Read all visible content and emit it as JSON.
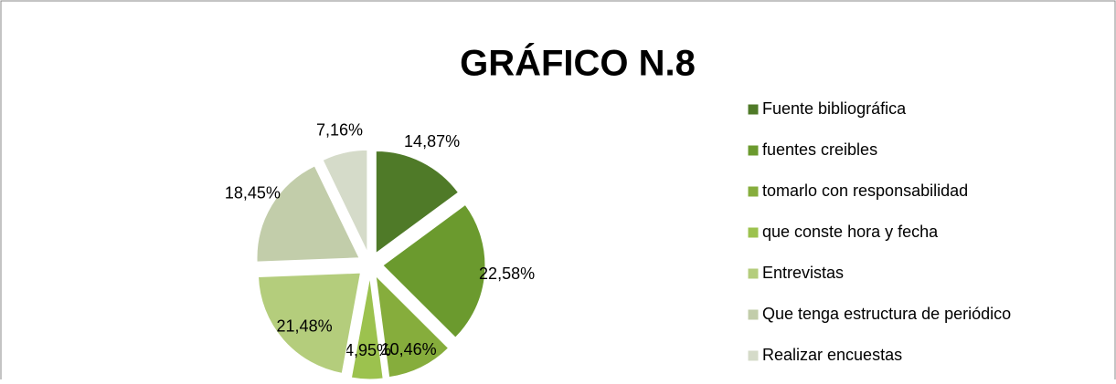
{
  "chart_data": {
    "type": "pie",
    "title": "GRÁFICO N.8",
    "categories": [
      "Fuente bibliográfica",
      "fuentes creibles",
      "tomarlo con responsabilidad",
      "que conste hora y fecha",
      "Entrevistas",
      "Que tenga estructura de periódico",
      "Realizar encuestas"
    ],
    "values": [
      14.87,
      22.58,
      10.46,
      4.95,
      21.48,
      18.45,
      7.16
    ],
    "value_labels": [
      "14,87%",
      "22,58%",
      "10,46%",
      "4,95%",
      "21,48%",
      "18,45%",
      "7,16%"
    ],
    "colors": [
      "#4f7a28",
      "#6b9a2e",
      "#86ad3c",
      "#9cc24e",
      "#b4cd7c",
      "#c2cdaa",
      "#d5dbc9"
    ],
    "legend": "right"
  }
}
